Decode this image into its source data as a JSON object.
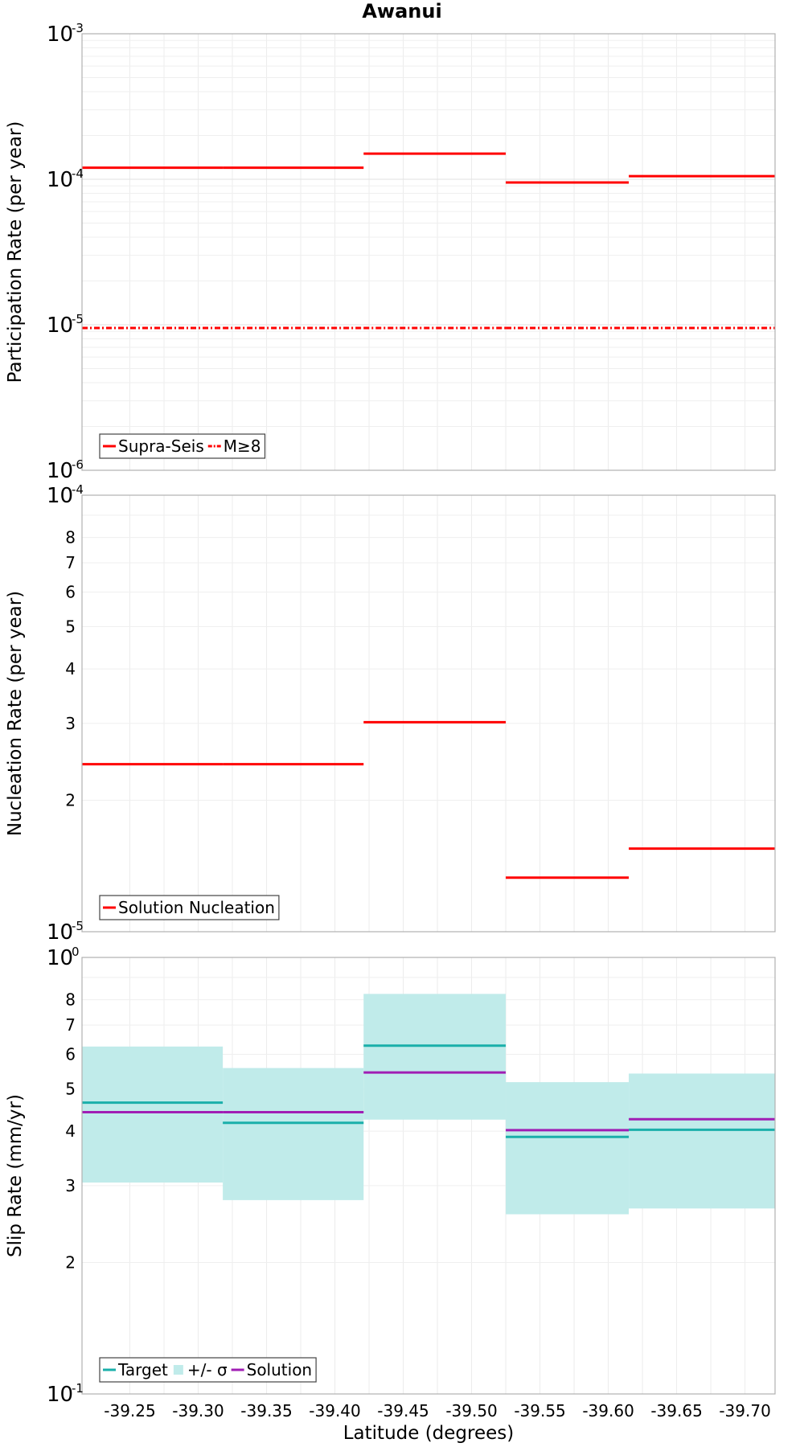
{
  "figure_title": "Awanui",
  "xlabel": "Latitude (degrees)",
  "x_ticks": [
    "-39.25",
    "-39.30",
    "-39.35",
    "-39.40",
    "-39.45",
    "-39.50",
    "-39.55",
    "-39.60",
    "-39.65",
    "-39.70"
  ],
  "chart_data": [
    {
      "type": "line",
      "title": "Awanui",
      "ylabel": "Participation Rate (per year)",
      "xlim": [
        -39.215,
        -39.722
      ],
      "ylim": [
        1e-06,
        0.001
      ],
      "log_y": true,
      "grid": true,
      "legend_position": "bottom-left",
      "y_ticks": [
        {
          "base": "10",
          "exp": "-6"
        },
        {
          "base": "10",
          "exp": "-5"
        },
        {
          "base": "10",
          "exp": "-4"
        },
        {
          "base": "10",
          "exp": "-3"
        }
      ],
      "series": [
        {
          "name": "Supra-Seis",
          "color": "#ff0000",
          "style": "solid",
          "segments": [
            {
              "x0": -39.215,
              "x1": -39.318,
              "y": 0.00012
            },
            {
              "x0": -39.318,
              "x1": -39.421,
              "y": 0.00012
            },
            {
              "x0": -39.421,
              "x1": -39.525,
              "y": 0.00015
            },
            {
              "x0": -39.525,
              "x1": -39.615,
              "y": 9.5e-05
            },
            {
              "x0": -39.615,
              "x1": -39.722,
              "y": 0.000105
            }
          ]
        },
        {
          "name": "M≥8",
          "color": "#ff0000",
          "style": "dashdot",
          "segments": [
            {
              "x0": -39.215,
              "x1": -39.318,
              "y": 9.5e-06
            },
            {
              "x0": -39.318,
              "x1": -39.421,
              "y": 9.5e-06
            },
            {
              "x0": -39.421,
              "x1": -39.525,
              "y": 9.5e-06
            },
            {
              "x0": -39.525,
              "x1": -39.615,
              "y": 9.5e-06
            },
            {
              "x0": -39.615,
              "x1": -39.722,
              "y": 9.5e-06
            }
          ]
        }
      ]
    },
    {
      "type": "line",
      "ylabel": "Nucleation Rate (per year)",
      "xlim": [
        -39.215,
        -39.722
      ],
      "ylim": [
        1e-05,
        0.0001
      ],
      "log_y": true,
      "grid": true,
      "legend_position": "bottom-left",
      "y_ticks": [
        {
          "base": "10",
          "exp": "-5"
        },
        {
          "base": "10",
          "exp": "-4"
        }
      ],
      "y_minor_labels": [
        {
          "label": "2",
          "value": 2e-05
        },
        {
          "label": "3",
          "value": 3e-05
        },
        {
          "label": "4",
          "value": 4e-05
        },
        {
          "label": "5",
          "value": 5e-05
        },
        {
          "label": "6",
          "value": 6e-05
        },
        {
          "label": "7",
          "value": 7e-05
        },
        {
          "label": "8",
          "value": 8e-05
        }
      ],
      "series": [
        {
          "name": "Solution Nucleation",
          "color": "#ff0000",
          "style": "solid",
          "segments": [
            {
              "x0": -39.215,
              "x1": -39.318,
              "y": 2.42e-05
            },
            {
              "x0": -39.318,
              "x1": -39.421,
              "y": 2.42e-05
            },
            {
              "x0": -39.421,
              "x1": -39.525,
              "y": 3.02e-05
            },
            {
              "x0": -39.525,
              "x1": -39.615,
              "y": 1.33e-05
            },
            {
              "x0": -39.615,
              "x1": -39.722,
              "y": 1.55e-05
            }
          ]
        }
      ]
    },
    {
      "type": "line",
      "ylabel": "Slip Rate (mm/yr)",
      "xlim": [
        -39.215,
        -39.722
      ],
      "ylim": [
        0.1,
        1.0
      ],
      "log_y": true,
      "grid": true,
      "legend_position": "bottom-left",
      "y_ticks": [
        {
          "base": "10",
          "exp": "-1"
        },
        {
          "base": "10",
          "exp": "0"
        }
      ],
      "y_minor_labels": [
        {
          "label": "2",
          "value": 0.2
        },
        {
          "label": "3",
          "value": 0.3
        },
        {
          "label": "4",
          "value": 0.4
        },
        {
          "label": "5",
          "value": 0.5
        },
        {
          "label": "6",
          "value": 0.6
        },
        {
          "label": "7",
          "value": 0.7
        },
        {
          "label": "8",
          "value": 0.8
        }
      ],
      "bands": {
        "name": "+/- σ",
        "color": "#c0ebea",
        "segments": [
          {
            "x0": -39.215,
            "x1": -39.318,
            "low": 0.305,
            "high": 0.625
          },
          {
            "x0": -39.318,
            "x1": -39.421,
            "low": 0.278,
            "high": 0.558
          },
          {
            "x0": -39.421,
            "x1": -39.525,
            "low": 0.425,
            "high": 0.825
          },
          {
            "x0": -39.525,
            "x1": -39.615,
            "low": 0.258,
            "high": 0.518
          },
          {
            "x0": -39.615,
            "x1": -39.722,
            "low": 0.266,
            "high": 0.542
          }
        ]
      },
      "series": [
        {
          "name": "Target",
          "color": "#1aafaa",
          "style": "solid",
          "segments": [
            {
              "x0": -39.215,
              "x1": -39.318,
              "y": 0.465
            },
            {
              "x0": -39.318,
              "x1": -39.421,
              "y": 0.418
            },
            {
              "x0": -39.421,
              "x1": -39.525,
              "y": 0.628
            },
            {
              "x0": -39.525,
              "x1": -39.615,
              "y": 0.388
            },
            {
              "x0": -39.615,
              "x1": -39.722,
              "y": 0.403
            }
          ]
        },
        {
          "name": "Solution",
          "color": "#a01eb4",
          "style": "solid",
          "segments": [
            {
              "x0": -39.215,
              "x1": -39.318,
              "y": 0.442
            },
            {
              "x0": -39.318,
              "x1": -39.421,
              "y": 0.442
            },
            {
              "x0": -39.421,
              "x1": -39.525,
              "y": 0.545
            },
            {
              "x0": -39.525,
              "x1": -39.615,
              "y": 0.402
            },
            {
              "x0": -39.615,
              "x1": -39.722,
              "y": 0.426
            }
          ]
        }
      ]
    }
  ]
}
